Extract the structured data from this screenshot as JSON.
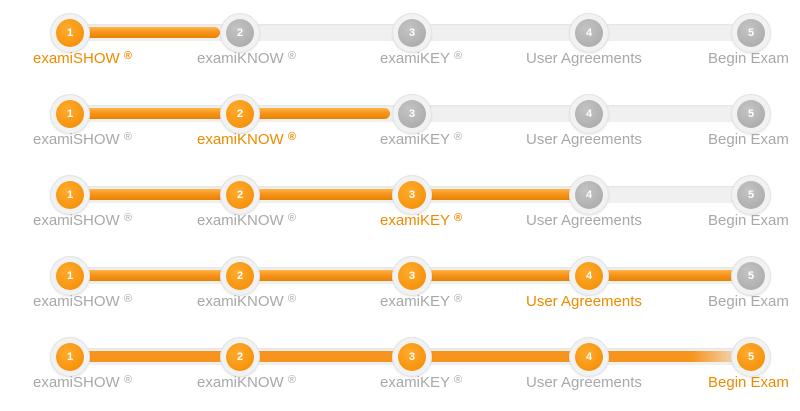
{
  "steps": [
    {
      "number": "1",
      "name": "examiSHOW",
      "mark": "®"
    },
    {
      "number": "2",
      "name": "examiKNOW",
      "mark": "®"
    },
    {
      "number": "3",
      "name": "examiKEY",
      "mark": "®"
    },
    {
      "number": "4",
      "name": "User Agreements",
      "mark": ""
    },
    {
      "number": "5",
      "name": "Begin Exam",
      "mark": ""
    }
  ],
  "rows": [
    {
      "current_step": 1,
      "progress": 0.22
    },
    {
      "current_step": 2,
      "progress": 0.47
    },
    {
      "current_step": 3,
      "progress": 0.75
    },
    {
      "current_step": 4,
      "progress": 1.0
    },
    {
      "current_step": 5,
      "progress": 1.0
    }
  ],
  "colors": {
    "active": "#f7941d",
    "inactive": "#a8a8a8",
    "track": "#f0f0f0"
  }
}
